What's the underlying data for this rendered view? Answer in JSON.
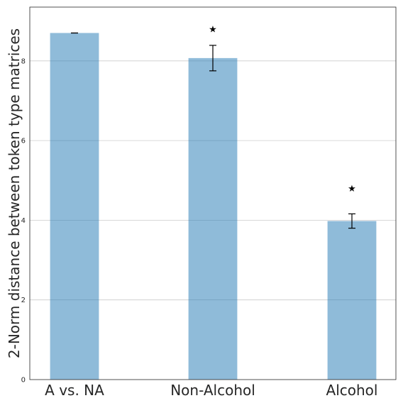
{
  "chart_data": {
    "type": "bar",
    "title": "",
    "xlabel": "",
    "ylabel": "2-Norm distance between token type matrices",
    "categories": [
      "A vs. NA",
      "Non-Alcohol",
      "Alcohol"
    ],
    "values": [
      8.7,
      8.07,
      3.98
    ],
    "error": [
      0.0,
      0.32,
      0.18
    ],
    "significance": [
      "",
      "★",
      "★"
    ],
    "significance_y": [
      null,
      8.8,
      4.8
    ],
    "ylim": [
      0,
      9.35
    ],
    "yticks": [
      0,
      2,
      4,
      6,
      8
    ],
    "grid": "y",
    "bar_color": "#1f77b4"
  }
}
